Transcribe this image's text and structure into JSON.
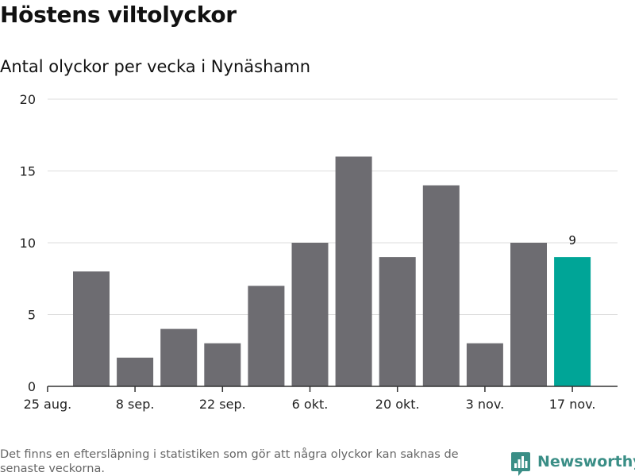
{
  "title": "Höstens viltolyckor",
  "subtitle": "Antal olyckor per vecka i Nynäshamn",
  "footnote": "Det finns en eftersläpning i statistiken som gör att några olyckor kan saknas de senaste veckorna.",
  "brand": {
    "name": "Newsworthy",
    "icon": "newsworthy-logo-icon",
    "color": "#3a8e86"
  },
  "chart_data": {
    "type": "bar",
    "title": "Höstens viltolyckor",
    "subtitle": "Antal olyckor per vecka i Nynäshamn",
    "xlabel": "",
    "ylabel": "",
    "values": [
      8,
      2,
      4,
      3,
      7,
      10,
      16,
      9,
      14,
      3,
      10,
      9
    ],
    "x_tick_labels": [
      "25 aug.",
      "8 sep.",
      "22 sep.",
      "6 okt.",
      "20 okt.",
      "3 nov.",
      "17 nov."
    ],
    "y_ticks": [
      0,
      5,
      10,
      15,
      20
    ],
    "ylim": [
      0,
      20
    ],
    "grid": true,
    "legend": "none",
    "colors": {
      "bar": "#6d6c71",
      "highlight": "#00a597",
      "grid": "#dddddd",
      "axis": "#333333"
    },
    "highlighted_index": 11,
    "data_labels": [
      {
        "index": 11,
        "text": "9"
      }
    ]
  }
}
